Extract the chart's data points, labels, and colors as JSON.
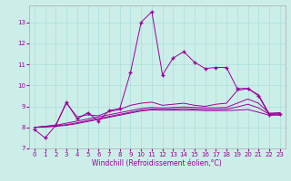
{
  "xlabel": "Windchill (Refroidissement éolien,°C)",
  "bg_color": "#cceee8",
  "line_color": "#990099",
  "grid_color": "#aadddd",
  "xlim": [
    -0.5,
    23.5
  ],
  "ylim": [
    7.0,
    13.8
  ],
  "yticks": [
    7,
    8,
    9,
    10,
    11,
    12,
    13
  ],
  "xticks": [
    0,
    1,
    2,
    3,
    4,
    5,
    6,
    7,
    8,
    9,
    10,
    11,
    12,
    13,
    14,
    15,
    16,
    17,
    18,
    19,
    20,
    21,
    22,
    23
  ],
  "series": [
    {
      "x": [
        0,
        1,
        2,
        3,
        4,
        5,
        6,
        7,
        8,
        9,
        10,
        11,
        12,
        13,
        14,
        15,
        16,
        17,
        18,
        19,
        20,
        21,
        22,
        23
      ],
      "y": [
        7.9,
        7.5,
        8.1,
        9.2,
        8.4,
        8.7,
        8.3,
        8.8,
        8.9,
        10.6,
        13.0,
        13.5,
        10.5,
        11.3,
        11.6,
        11.1,
        10.8,
        10.85,
        10.85,
        9.85,
        9.85,
        9.5,
        8.6,
        8.65
      ],
      "marker": "+",
      "linestyle": "-"
    },
    {
      "x": [
        0,
        1,
        2,
        3,
        4,
        5,
        6,
        7,
        8,
        9,
        10,
        11,
        12,
        13,
        14,
        15,
        16,
        17,
        18,
        19,
        20,
        21,
        22,
        23
      ],
      "y": [
        8.0,
        8.05,
        8.1,
        9.15,
        8.5,
        8.6,
        8.55,
        8.75,
        8.85,
        9.05,
        9.15,
        9.2,
        9.05,
        9.1,
        9.15,
        9.05,
        9.0,
        9.1,
        9.15,
        9.75,
        9.85,
        9.55,
        8.65,
        8.7
      ],
      "marker": null,
      "linestyle": "-"
    },
    {
      "x": [
        0,
        1,
        2,
        3,
        4,
        5,
        6,
        7,
        8,
        9,
        10,
        11,
        12,
        13,
        14,
        15,
        16,
        17,
        18,
        19,
        20,
        21,
        22,
        23
      ],
      "y": [
        8.0,
        8.05,
        8.1,
        8.2,
        8.3,
        8.4,
        8.5,
        8.6,
        8.7,
        8.8,
        8.9,
        8.95,
        8.92,
        8.95,
        8.97,
        8.95,
        8.93,
        8.93,
        8.95,
        9.15,
        9.35,
        9.15,
        8.68,
        8.68
      ],
      "marker": null,
      "linestyle": "-"
    },
    {
      "x": [
        0,
        1,
        2,
        3,
        4,
        5,
        6,
        7,
        8,
        9,
        10,
        11,
        12,
        13,
        14,
        15,
        16,
        17,
        18,
        19,
        20,
        21,
        22,
        23
      ],
      "y": [
        8.0,
        8.02,
        8.05,
        8.1,
        8.18,
        8.28,
        8.38,
        8.48,
        8.58,
        8.68,
        8.78,
        8.83,
        8.82,
        8.82,
        8.82,
        8.82,
        8.8,
        8.8,
        8.8,
        8.82,
        8.85,
        8.72,
        8.58,
        8.58
      ],
      "marker": null,
      "linestyle": "-"
    },
    {
      "x": [
        0,
        1,
        2,
        3,
        4,
        5,
        6,
        7,
        8,
        9,
        10,
        11,
        12,
        13,
        14,
        15,
        16,
        17,
        18,
        19,
        20,
        21,
        22,
        23
      ],
      "y": [
        8.0,
        8.03,
        8.07,
        8.13,
        8.22,
        8.32,
        8.42,
        8.52,
        8.62,
        8.72,
        8.82,
        8.87,
        8.85,
        8.87,
        8.89,
        8.87,
        8.85,
        8.85,
        8.87,
        8.97,
        9.1,
        8.93,
        8.63,
        8.63
      ],
      "marker": null,
      "linestyle": "-"
    }
  ]
}
